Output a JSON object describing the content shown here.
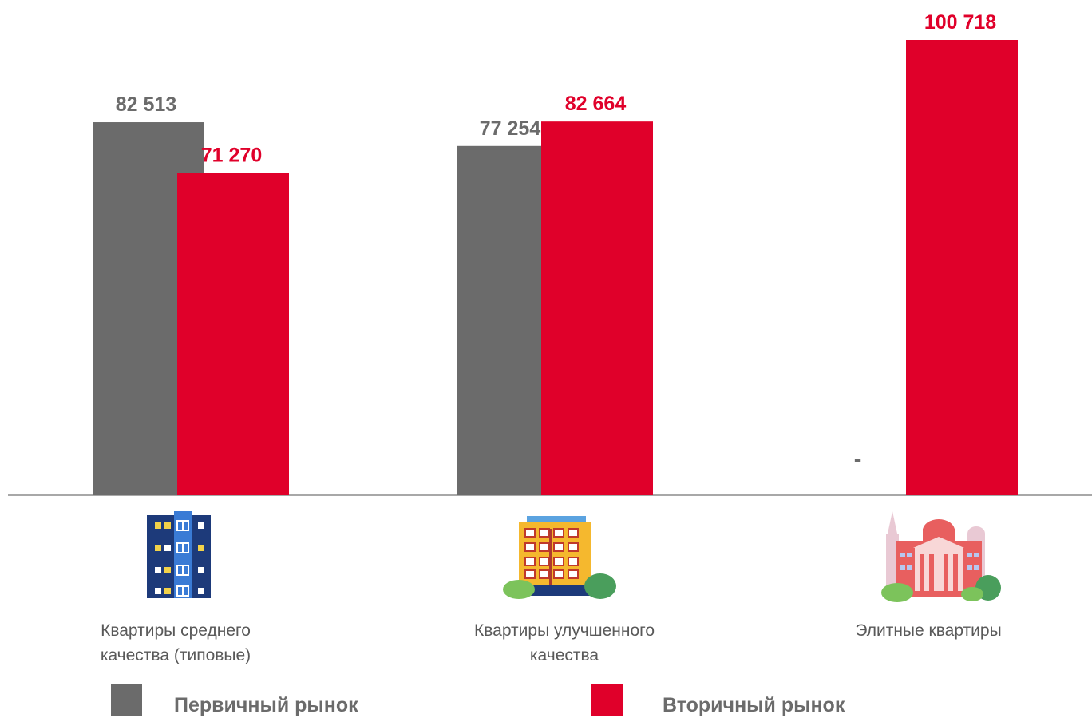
{
  "chart_data": {
    "type": "bar",
    "categories": [
      "Квартиры среднего качества (типовые)",
      "Квартиры улучшенного качества",
      "Элитные квартиры"
    ],
    "series": [
      {
        "name": "Первичный рынок",
        "color": "#6b6b6b",
        "values": [
          82513,
          77254,
          null
        ],
        "labels": [
          "82 513",
          "77 254",
          "-"
        ]
      },
      {
        "name": "Вторичный рынок",
        "color": "#e0002a",
        "values": [
          71270,
          82664,
          100718
        ],
        "labels": [
          "71 270",
          "82 664",
          "100 718"
        ]
      }
    ],
    "ylim": [
      0,
      100718
    ],
    "grid": false,
    "legend_position": "bottom"
  },
  "categories_display": [
    {
      "line1": "Квартиры среднего",
      "line2": "качества (типовые)",
      "icon": "blue-apartment-building-icon"
    },
    {
      "line1": "Квартиры улучшенного",
      "line2": "качества",
      "icon": "yellow-apartment-building-icon"
    },
    {
      "line1": "Элитные квартиры",
      "line2": "",
      "icon": "elite-classical-building-icon"
    }
  ],
  "legend": {
    "primary": "Первичный рынок",
    "secondary": "Вторичный рынок"
  }
}
